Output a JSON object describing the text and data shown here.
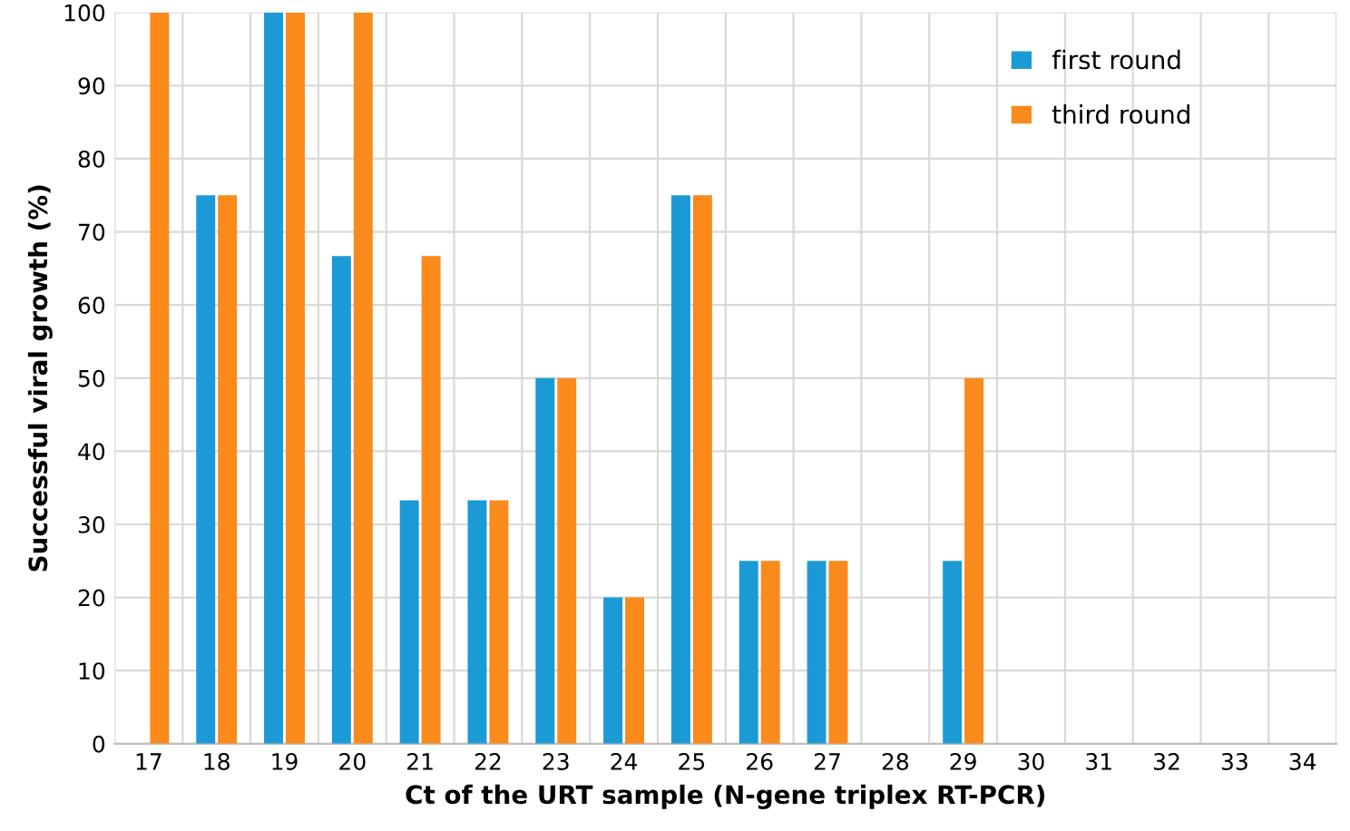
{
  "chart_data": {
    "type": "bar",
    "xlabel": "Ct of the URT sample (N-gene triplex RT-PCR)",
    "ylabel": "Successful viral growth (%)",
    "categories": [
      "17",
      "18",
      "19",
      "20",
      "21",
      "22",
      "23",
      "24",
      "25",
      "26",
      "27",
      "28",
      "29",
      "30",
      "31",
      "32",
      "33",
      "34"
    ],
    "series": [
      {
        "name": "first round",
        "color": "#1c9ad6",
        "values": [
          0,
          75,
          100,
          66.7,
          33.3,
          33.3,
          50,
          20,
          75,
          25,
          25,
          0,
          25,
          0,
          0,
          0,
          0,
          0
        ]
      },
      {
        "name": "third round",
        "color": "#fa8a1c",
        "values": [
          100,
          75,
          100,
          100,
          66.7,
          33.3,
          50,
          20,
          75,
          25,
          25,
          0,
          50,
          0,
          0,
          0,
          0,
          0
        ]
      }
    ],
    "ylim": [
      0,
      100
    ],
    "yticks": [
      0,
      10,
      20,
      30,
      40,
      50,
      60,
      70,
      80,
      90,
      100
    ],
    "grid": true,
    "legend": "top right"
  }
}
